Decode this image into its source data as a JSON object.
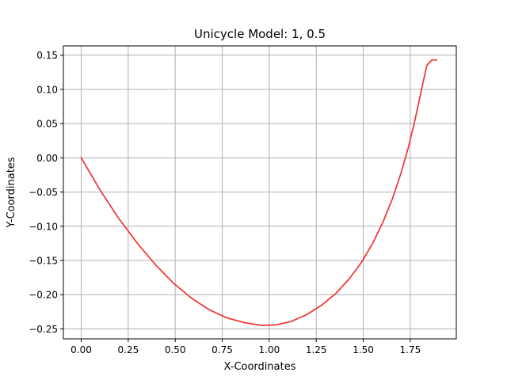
{
  "chart_data": {
    "type": "line",
    "title": "Unicycle Model: 1, 0.5",
    "xlabel": "X-Coordinates",
    "ylabel": "Y-Coordinates",
    "xlim": [
      -0.095,
      1.995
    ],
    "ylim": [
      -0.2645,
      0.1635
    ],
    "xticks": [
      0.0,
      0.25,
      0.5,
      0.75,
      1.0,
      1.25,
      1.5,
      1.75
    ],
    "xtick_labels": [
      "0.00",
      "0.25",
      "0.50",
      "0.75",
      "1.00",
      "1.25",
      "1.50",
      "1.75"
    ],
    "yticks": [
      0.15,
      0.1,
      0.05,
      0.0,
      -0.05,
      -0.1,
      -0.15,
      -0.2,
      -0.25
    ],
    "ytick_labels": [
      "0.15",
      "0.10",
      "0.05",
      "0.00",
      "−0.05",
      "−0.10",
      "−0.15",
      "−0.20",
      "−0.25"
    ],
    "grid": true,
    "series": [
      {
        "color": "#f03c3c",
        "x": [
          0.0,
          0.1,
          0.198,
          0.296,
          0.394,
          0.49,
          0.586,
          0.681,
          0.776,
          0.87,
          0.964,
          1.04,
          1.118,
          1.2,
          1.28,
          1.355,
          1.425,
          1.49,
          1.55,
          1.605,
          1.655,
          1.7,
          1.74,
          1.775,
          1.808,
          1.838,
          1.865,
          1.89
        ],
        "y": [
          0.0,
          -0.047,
          -0.088,
          -0.124,
          -0.156,
          -0.183,
          -0.205,
          -0.222,
          -0.234,
          -0.241,
          -0.245,
          -0.244,
          -0.239,
          -0.229,
          -0.215,
          -0.198,
          -0.177,
          -0.153,
          -0.125,
          -0.094,
          -0.06,
          -0.023,
          0.015,
          0.055,
          0.097,
          0.135,
          0.143,
          0.143
        ]
      }
    ]
  }
}
